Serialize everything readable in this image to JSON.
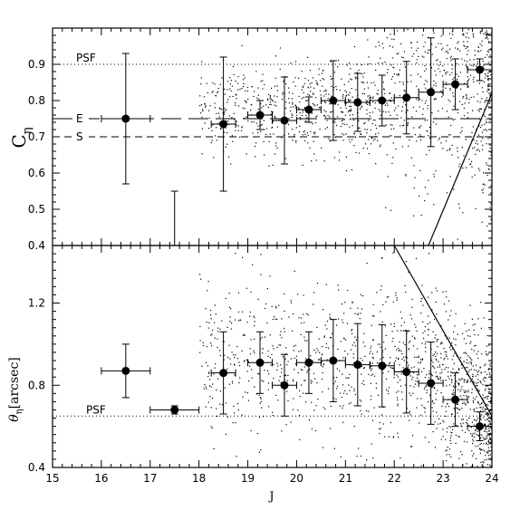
{
  "chart_data": [
    {
      "type": "scatter",
      "panel": "top",
      "xlabel": "",
      "ylabel_main": "C",
      "ylabel_sub": "η",
      "xlim": [
        15,
        24
      ],
      "ylim": [
        0.4,
        1.0
      ],
      "yticks": [
        0.4,
        0.5,
        0.6,
        0.7,
        0.8,
        0.9
      ],
      "ytick_labels": [
        "0.4",
        "0.5",
        "0.6",
        "0.7",
        "0.8",
        "0.9"
      ],
      "reference_lines": [
        {
          "label": "PSF",
          "y": 0.9,
          "style": "dotted"
        },
        {
          "label": "E",
          "y": 0.75,
          "style": "long-dash"
        },
        {
          "label": "S",
          "y": 0.7,
          "style": "dash"
        }
      ],
      "solid_line": {
        "x": [
          22.7,
          24.0
        ],
        "y": [
          0.4,
          0.82
        ]
      },
      "binned_points": [
        {
          "x": 16.5,
          "y": 0.75,
          "xerr": 0.5,
          "yerr_low": 0.18,
          "yerr_high": 0.18
        },
        {
          "x": 18.5,
          "y": 0.735,
          "xerr": 0.25,
          "yerr_low": 0.185,
          "yerr_high": 0.185
        },
        {
          "x": 19.25,
          "y": 0.76,
          "xerr": 0.25,
          "yerr_low": 0.04,
          "yerr_high": 0.04
        },
        {
          "x": 19.75,
          "y": 0.745,
          "xerr": 0.25,
          "yerr_low": 0.12,
          "yerr_high": 0.12
        },
        {
          "x": 20.25,
          "y": 0.775,
          "xerr": 0.25,
          "yerr_low": 0.035,
          "yerr_high": 0.035
        },
        {
          "x": 20.75,
          "y": 0.8,
          "xerr": 0.25,
          "yerr_low": 0.11,
          "yerr_high": 0.11
        },
        {
          "x": 21.25,
          "y": 0.795,
          "xerr": 0.25,
          "yerr_low": 0.08,
          "yerr_high": 0.08
        },
        {
          "x": 21.75,
          "y": 0.8,
          "xerr": 0.25,
          "yerr_low": 0.07,
          "yerr_high": 0.07
        },
        {
          "x": 22.25,
          "y": 0.808,
          "xerr": 0.25,
          "yerr_low": 0.1,
          "yerr_high": 0.1
        },
        {
          "x": 22.75,
          "y": 0.823,
          "xerr": 0.25,
          "yerr_low": 0.15,
          "yerr_high": 0.15
        },
        {
          "x": 23.25,
          "y": 0.845,
          "xerr": 0.25,
          "yerr_low": 0.07,
          "yerr_high": 0.07
        },
        {
          "x": 23.75,
          "y": 0.885,
          "xerr": 0.25,
          "yerr_low": 0.03,
          "yerr_high": 0.03
        }
      ],
      "extra_errorbars": [
        {
          "x": 17.5,
          "y_low": 0.4,
          "y_high": 0.55
        }
      ]
    },
    {
      "type": "scatter",
      "panel": "bottom",
      "xlabel": "J",
      "ylabel_main": "θ",
      "ylabel_sub": "η",
      "ylabel_suffix": "[arcsec]",
      "xlim": [
        15,
        24
      ],
      "ylim": [
        0.4,
        1.48
      ],
      "xticks": [
        15,
        16,
        17,
        18,
        19,
        20,
        21,
        22,
        23,
        24
      ],
      "xtick_labels": [
        "15",
        "16",
        "17",
        "18",
        "19",
        "20",
        "21",
        "22",
        "23",
        "24"
      ],
      "yticks": [
        0.4,
        0.8,
        1.2
      ],
      "ytick_labels": [
        "0.4",
        "0.8",
        "1.2"
      ],
      "reference_lines": [
        {
          "label": "PSF",
          "y": 0.65,
          "style": "dotted"
        }
      ],
      "solid_line": {
        "x": [
          22.0,
          24.0
        ],
        "y": [
          1.48,
          0.65
        ]
      },
      "binned_points": [
        {
          "x": 16.5,
          "y": 0.87,
          "xerr": 0.5,
          "yerr_low": 0.13,
          "yerr_high": 0.13
        },
        {
          "x": 17.5,
          "y": 0.68,
          "xerr": 0.5,
          "yerr_low": 0.02,
          "yerr_high": 0.02
        },
        {
          "x": 18.5,
          "y": 0.86,
          "xerr": 0.25,
          "yerr_low": 0.2,
          "yerr_high": 0.2
        },
        {
          "x": 19.25,
          "y": 0.91,
          "xerr": 0.25,
          "yerr_low": 0.15,
          "yerr_high": 0.15
        },
        {
          "x": 19.75,
          "y": 0.8,
          "xerr": 0.25,
          "yerr_low": 0.15,
          "yerr_high": 0.15
        },
        {
          "x": 20.25,
          "y": 0.91,
          "xerr": 0.25,
          "yerr_low": 0.15,
          "yerr_high": 0.15
        },
        {
          "x": 20.75,
          "y": 0.92,
          "xerr": 0.25,
          "yerr_low": 0.2,
          "yerr_high": 0.2
        },
        {
          "x": 21.25,
          "y": 0.9,
          "xerr": 0.25,
          "yerr_low": 0.2,
          "yerr_high": 0.2
        },
        {
          "x": 21.75,
          "y": 0.895,
          "xerr": 0.25,
          "yerr_low": 0.2,
          "yerr_high": 0.2
        },
        {
          "x": 22.25,
          "y": 0.865,
          "xerr": 0.25,
          "yerr_low": 0.2,
          "yerr_high": 0.2
        },
        {
          "x": 22.75,
          "y": 0.81,
          "xerr": 0.25,
          "yerr_low": 0.2,
          "yerr_high": 0.2
        },
        {
          "x": 23.25,
          "y": 0.73,
          "xerr": 0.25,
          "yerr_low": 0.13,
          "yerr_high": 0.13
        },
        {
          "x": 23.75,
          "y": 0.6,
          "xerr": 0.25,
          "yerr_low": 0.07,
          "yerr_high": 0.07
        }
      ]
    }
  ]
}
